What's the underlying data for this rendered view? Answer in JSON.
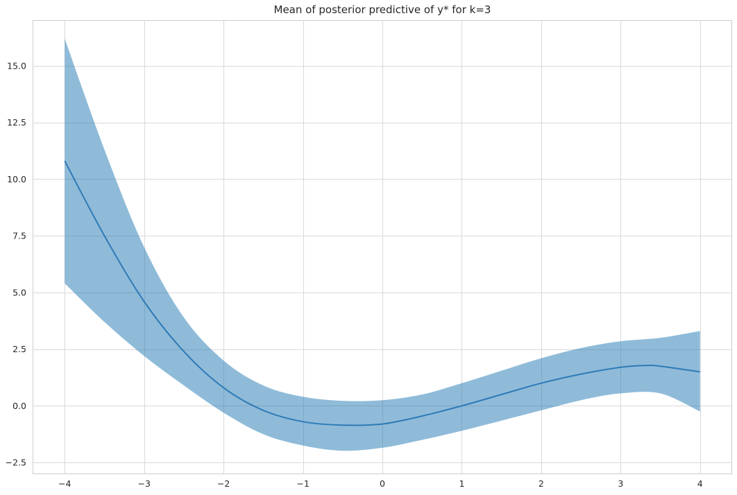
{
  "chart_data": {
    "type": "line",
    "title": "Mean of posterior predictive of y* for k=3",
    "xlabel": "",
    "ylabel": "",
    "xlim": [
      -4.4,
      4.4
    ],
    "ylim": [
      -3.0,
      17.0
    ],
    "x_ticks": [
      -4,
      -3,
      -2,
      -1,
      0,
      1,
      2,
      3,
      4
    ],
    "x_tick_labels": [
      "−4",
      "−3",
      "−2",
      "−1",
      "0",
      "1",
      "2",
      "3",
      "4"
    ],
    "y_ticks": [
      -2.5,
      0.0,
      2.5,
      5.0,
      7.5,
      10.0,
      12.5,
      15.0
    ],
    "y_tick_labels": [
      "−2.5",
      "0.0",
      "2.5",
      "5.0",
      "7.5",
      "10.0",
      "12.5",
      "15.0"
    ],
    "grid": true,
    "series": [
      {
        "type": "line",
        "color": "#2e7ab6",
        "x": [
          -4.0,
          -3.5,
          -3.0,
          -2.5,
          -2.0,
          -1.5,
          -1.0,
          -0.5,
          0.0,
          0.5,
          1.0,
          1.5,
          2.0,
          2.5,
          3.0,
          3.3,
          3.5,
          4.0
        ],
        "y": [
          10.8,
          7.5,
          4.6,
          2.4,
          0.8,
          -0.2,
          -0.7,
          -0.85,
          -0.8,
          -0.45,
          0.0,
          0.5,
          1.0,
          1.4,
          1.7,
          1.78,
          1.75,
          1.5
        ]
      },
      {
        "type": "band",
        "color": "#1f77b4",
        "opacity": 0.5,
        "x": [
          -4.0,
          -3.5,
          -3.0,
          -2.5,
          -2.0,
          -1.5,
          -1.0,
          -0.5,
          0.0,
          0.5,
          1.0,
          1.5,
          2.0,
          2.5,
          3.0,
          3.5,
          4.0
        ],
        "upper": [
          16.2,
          11.3,
          7.0,
          3.9,
          2.0,
          0.9,
          0.4,
          0.22,
          0.25,
          0.5,
          1.0,
          1.55,
          2.1,
          2.55,
          2.85,
          3.0,
          3.3
        ],
        "lower": [
          5.4,
          3.7,
          2.2,
          0.9,
          -0.3,
          -1.25,
          -1.75,
          -1.98,
          -1.85,
          -1.5,
          -1.1,
          -0.65,
          -0.2,
          0.25,
          0.55,
          0.55,
          -0.25
        ]
      }
    ]
  }
}
